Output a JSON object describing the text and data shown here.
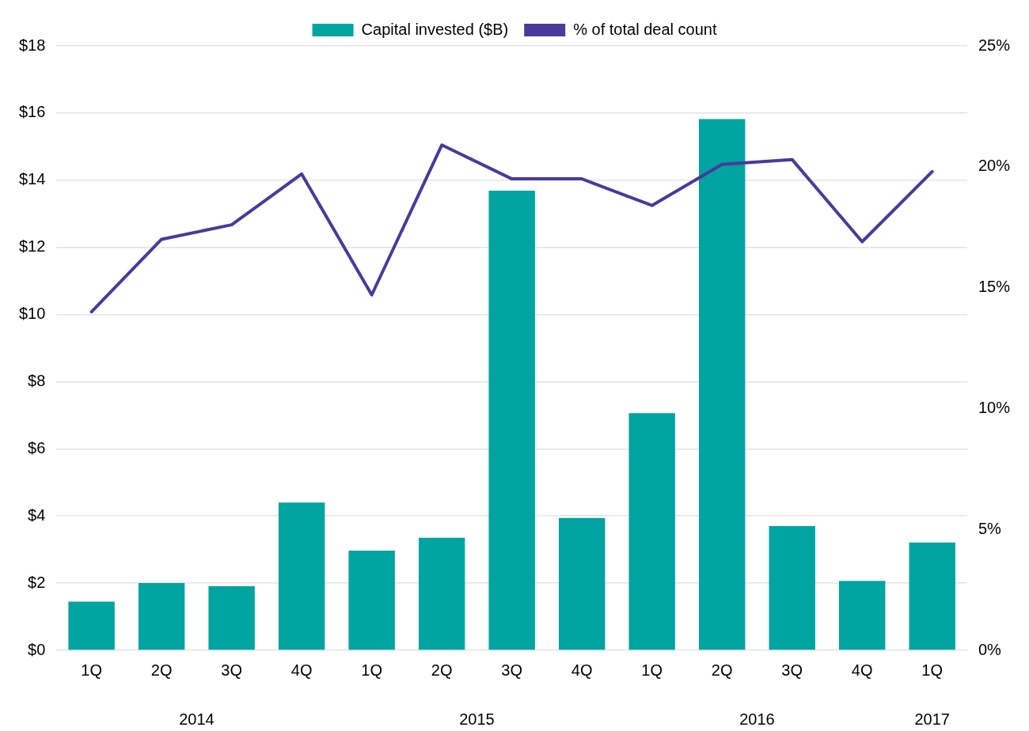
{
  "chart_data": {
    "type": "bar",
    "categories": [
      "1Q",
      "2Q",
      "3Q",
      "4Q",
      "1Q",
      "2Q",
      "3Q",
      "4Q",
      "1Q",
      "2Q",
      "3Q",
      "4Q",
      "1Q"
    ],
    "series": [
      {
        "name": "Capital invested ($B)",
        "color": "#00a4a1",
        "values": [
          1.45,
          2.0,
          1.91,
          4.4,
          2.97,
          3.35,
          13.69,
          3.94,
          7.06,
          15.82,
          3.7,
          2.07,
          3.21
        ]
      },
      {
        "name": "% of total deal count",
        "type": "line",
        "axis": "y2",
        "color": "#4a3a9c",
        "values": [
          14.0,
          17.0,
          17.6,
          19.7,
          14.7,
          20.9,
          19.5,
          19.5,
          18.4,
          20.1,
          20.3,
          16.9,
          19.8
        ]
      }
    ],
    "ylim": [
      0,
      18
    ],
    "yticks": [
      {
        "value": 0,
        "label": "$0"
      },
      {
        "value": 2,
        "label": "$2"
      },
      {
        "value": 4,
        "label": "$4"
      },
      {
        "value": 6,
        "label": "$6"
      },
      {
        "value": 8,
        "label": "$8"
      },
      {
        "value": 10,
        "label": "$10"
      },
      {
        "value": 12,
        "label": "$12"
      },
      {
        "value": 14,
        "label": "$14"
      },
      {
        "value": 16,
        "label": "$16"
      },
      {
        "value": 18,
        "label": "$18"
      }
    ],
    "y2lim": [
      0,
      25
    ],
    "y2ticks": [
      {
        "value": 0,
        "label": "0%"
      },
      {
        "value": 5,
        "label": "5%"
      },
      {
        "value": 10,
        "label": "10%"
      },
      {
        "value": 15,
        "label": "15%"
      },
      {
        "value": 20,
        "label": "20%"
      },
      {
        "value": 25,
        "label": "25%"
      }
    ],
    "annotations": [
      "2014",
      "2015",
      "2016",
      "2017"
    ],
    "grid": "y",
    "legend": "top",
    "marker": "none",
    "line_style": "solid"
  }
}
